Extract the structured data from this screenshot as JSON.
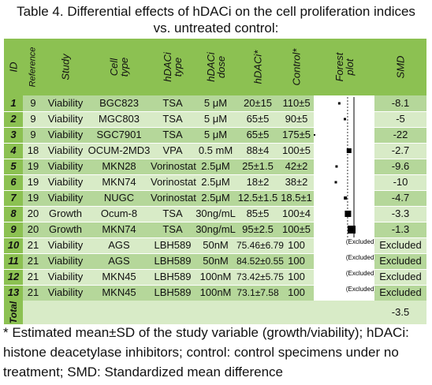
{
  "caption": {
    "line1": "Table 4. Differential effects of hDACi on the cell proliferation indices",
    "line2": "vs. untreated control:"
  },
  "headers": {
    "id": "ID",
    "reference": "Reference",
    "study": "Study",
    "cell_type": "Cell\ntype",
    "hdaci_type": "hDACi\ntype",
    "hdaci_dose": "hDACi\ndose",
    "hdaci_val": "hDACi*",
    "control": "Control*",
    "forest": "Forest\nplot",
    "smd": "SMD"
  },
  "rows": [
    {
      "id": "1",
      "ref": "9",
      "study": "Viability",
      "cell": "BGC823",
      "type": "TSA",
      "dose": "5 μM",
      "hdaci": "20±15",
      "control": "110±5",
      "smd": "-8.1",
      "forest": "",
      "est": -8.1
    },
    {
      "id": "2",
      "ref": "9",
      "study": "Viability",
      "cell": "MGC803",
      "type": "TSA",
      "dose": "5 μM",
      "hdaci": "65±5",
      "control": "90±5",
      "smd": "-5",
      "forest": "",
      "est": -5
    },
    {
      "id": "3",
      "ref": "9",
      "study": "Viability",
      "cell": "SGC7901",
      "type": "TSA",
      "dose": "5 μM",
      "hdaci": "65±5",
      "control": "175±5",
      "smd": "-22",
      "forest": "",
      "est": -22
    },
    {
      "id": "4",
      "ref": "18",
      "study": "Viability",
      "cell": "OCUM-2MD3",
      "type": "VPA",
      "dose": "0.5 mM",
      "hdaci": "88±4",
      "control": "100±5",
      "smd": "-2.7",
      "forest": "",
      "est": -2.7
    },
    {
      "id": "5",
      "ref": "19",
      "study": "Viability",
      "cell": "MKN28",
      "type": "Vorinostat",
      "dose": "2.5μM",
      "hdaci": "25±1.5",
      "control": "42±2",
      "smd": "-9.6",
      "forest": "",
      "est": -9.6
    },
    {
      "id": "6",
      "ref": "19",
      "study": "Viability",
      "cell": "MKN74",
      "type": "Vorinostat",
      "dose": "2.5μM",
      "hdaci": "18±2",
      "control": "38±2",
      "smd": "-10",
      "forest": "",
      "est": -10
    },
    {
      "id": "7",
      "ref": "19",
      "study": "Viability",
      "cell": "NUGC",
      "type": "Vorinostat",
      "dose": "2.5μM",
      "hdaci": "12.5±1.5",
      "control": "18.5±1",
      "smd": "-4.7",
      "forest": "",
      "est": -4.7
    },
    {
      "id": "8",
      "ref": "20",
      "study": "Growth",
      "cell": "Ocum-8",
      "type": "TSA",
      "dose": "30ng/mL",
      "hdaci": "85±5",
      "control": "100±4",
      "smd": "-3.3",
      "forest": "",
      "est": -3.3
    },
    {
      "id": "9",
      "ref": "20",
      "study": "Growth",
      "cell": "MKN74",
      "type": "TSA",
      "dose": "30ng/mL",
      "hdaci": "95±2.5",
      "control": "100±5",
      "smd": "-1.3",
      "forest": "",
      "est": -1.3
    },
    {
      "id": "10",
      "ref": "21",
      "study": "Viability",
      "cell": "AGS",
      "type": "LBH589",
      "dose": "50nM",
      "hdaci": "75.46±6.79",
      "control": "100",
      "smd": "Excluded",
      "forest": "(Excluded)",
      "est": null
    },
    {
      "id": "11",
      "ref": "21",
      "study": "Viability",
      "cell": "AGS",
      "type": "LBH589",
      "dose": "50nM",
      "hdaci": "84.52±0.55",
      "control": "100",
      "smd": "Excluded",
      "forest": "(Excluded)",
      "est": null
    },
    {
      "id": "12",
      "ref": "21",
      "study": "Viability",
      "cell": "MKN45",
      "type": "LBH589",
      "dose": "100nM",
      "hdaci": "73.42±5.75",
      "control": "100",
      "smd": "Excluded",
      "forest": "(Excluded)",
      "est": null
    },
    {
      "id": "13",
      "ref": "21",
      "study": "Viability",
      "cell": "MKN45",
      "type": "LBH589",
      "dose": "100nM",
      "hdaci": "73.1±7.58",
      "control": "100",
      "smd": "Excluded",
      "forest": "(Excluded)",
      "est": null
    }
  ],
  "total": {
    "label": "Total",
    "smd": "-3.5"
  },
  "footnote": "* Estimated mean±SD of the study variable (growth/viability); hDACi: histone deacetylase inhibitors; control: control specimens under no treatment; SMD: Standardized mean difference",
  "colors": {
    "header": "#8cc152",
    "row_dark": "#b5d79a",
    "row_light": "#d8ebc7"
  }
}
